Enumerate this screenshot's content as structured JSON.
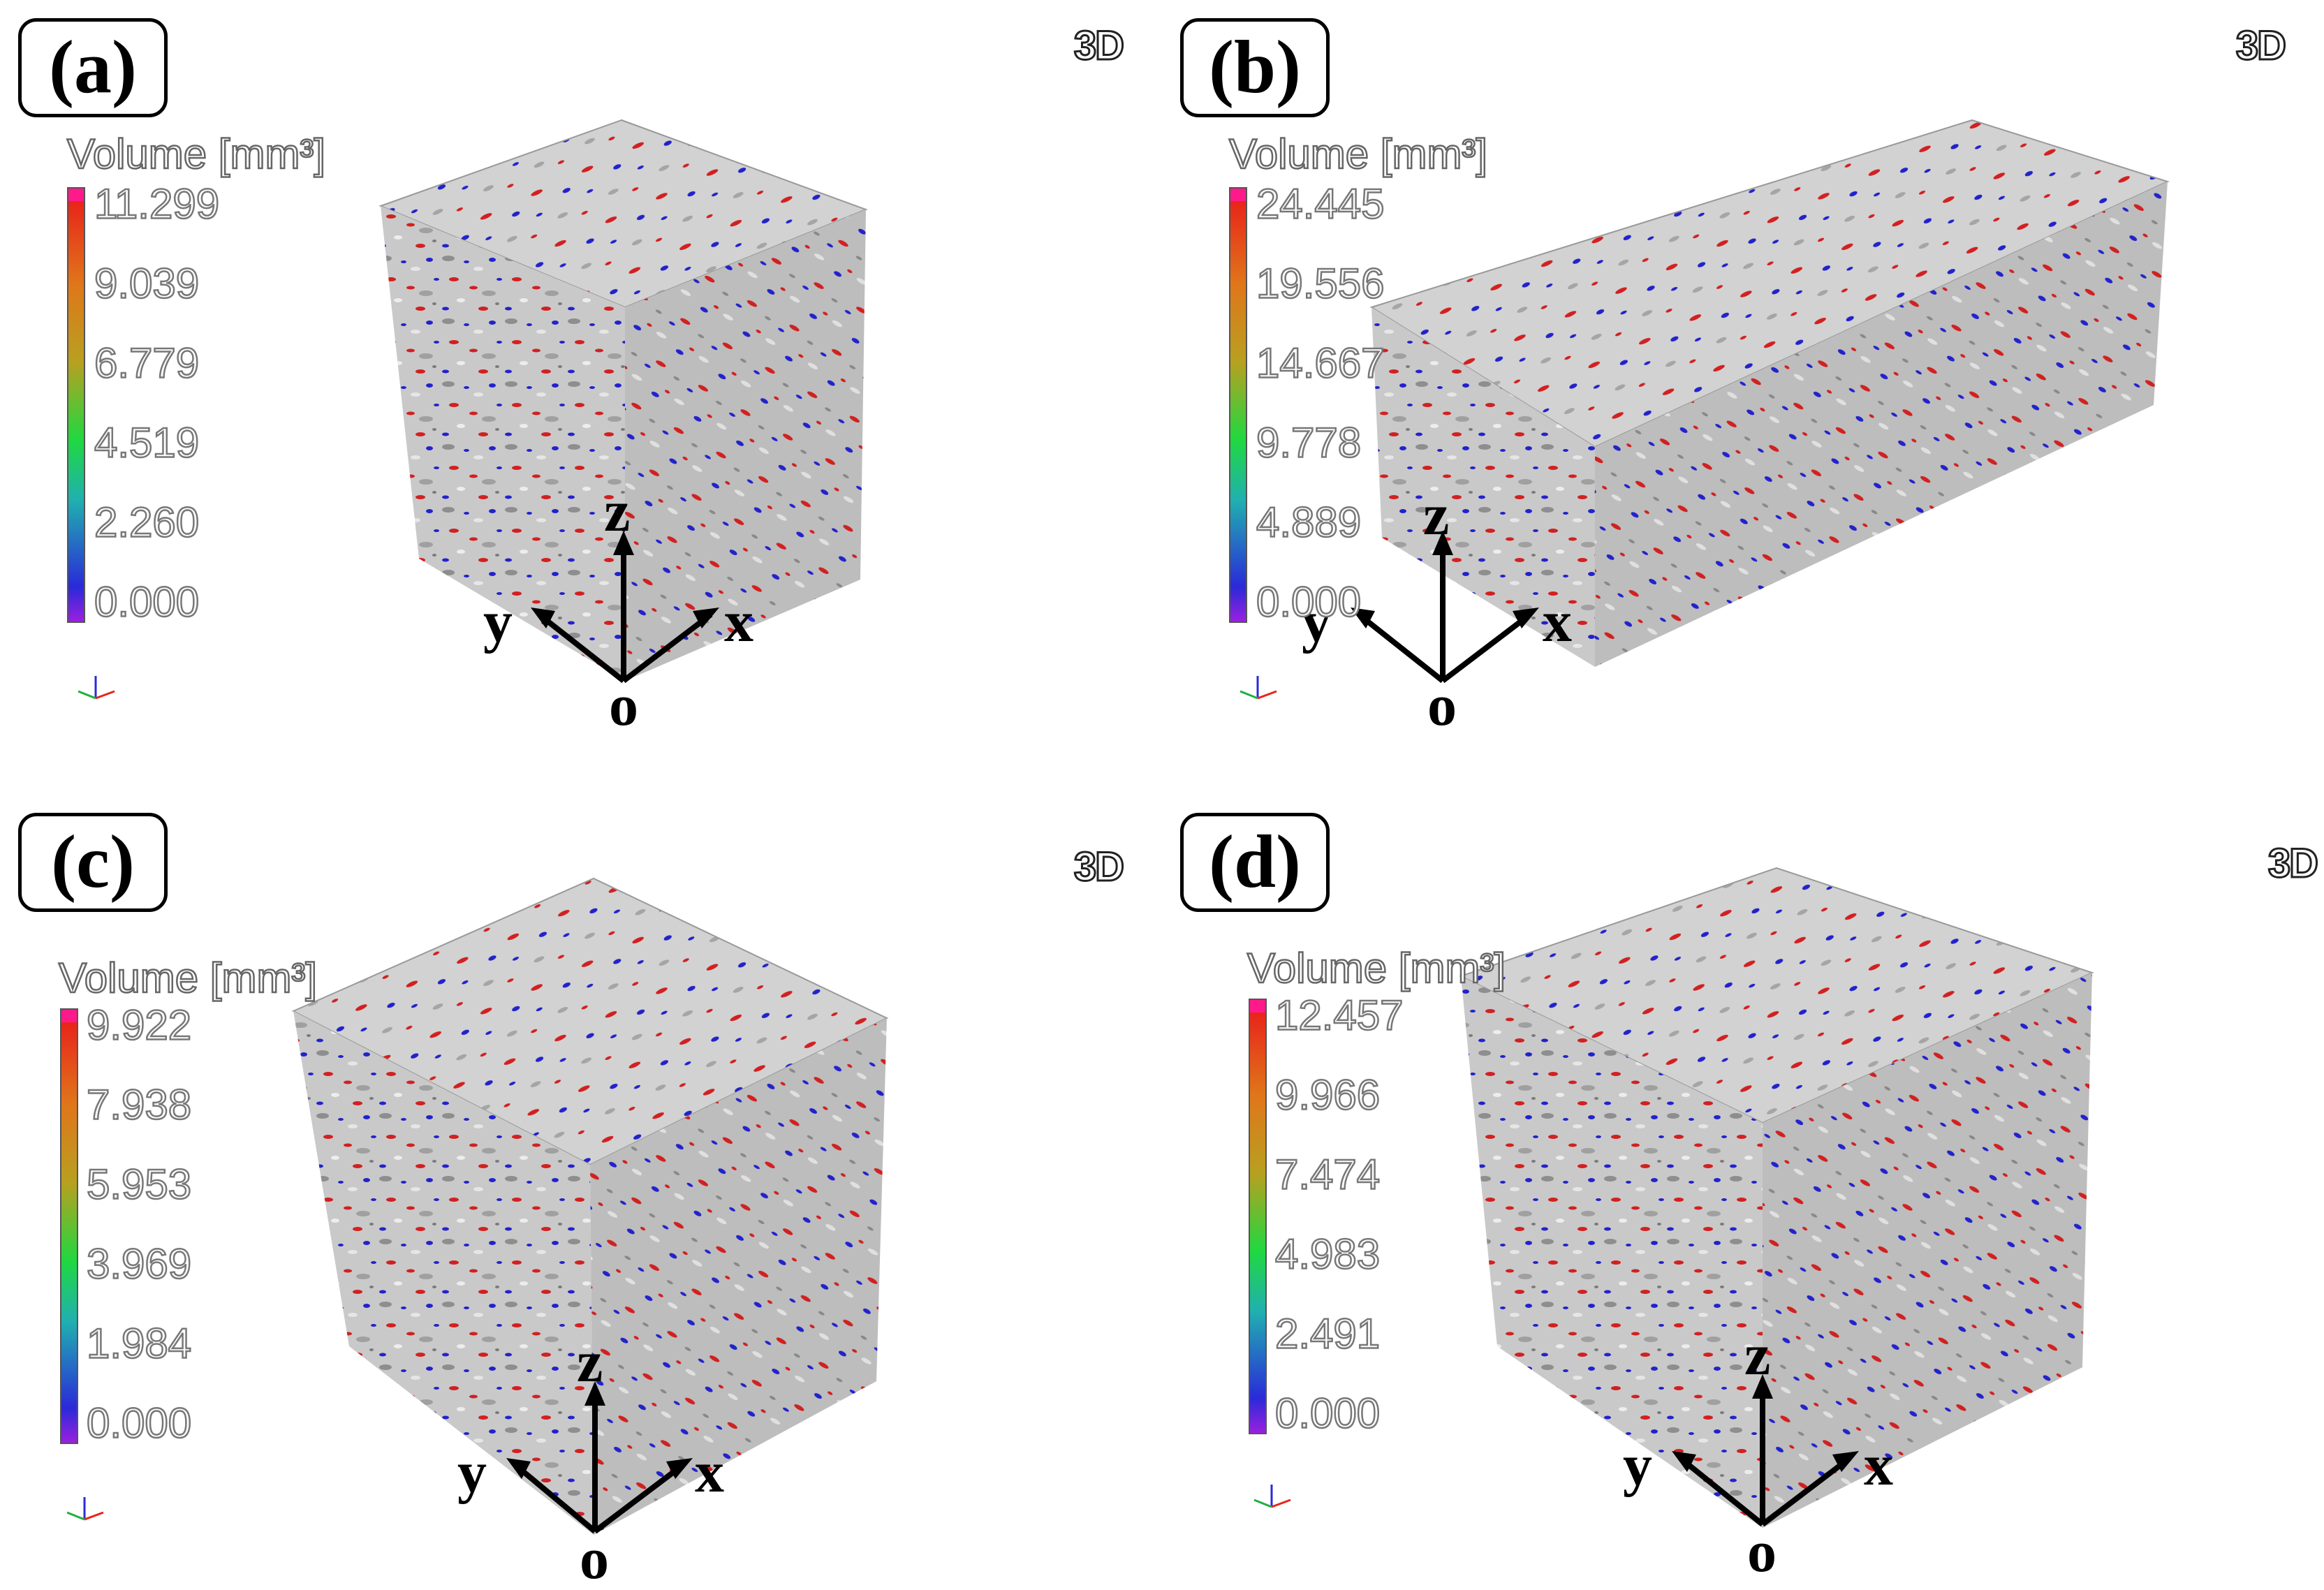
{
  "panels": [
    {
      "label": "(a)",
      "view_tag": "3D",
      "colorbar_title": "Volume [mm³]",
      "ticks": [
        "11.299",
        "9.039",
        "6.779",
        "4.519",
        "2.260",
        "0.000"
      ],
      "axes": {
        "z": "z",
        "y": "y",
        "x": "x",
        "origin": "o"
      }
    },
    {
      "label": "(b)",
      "view_tag": "3D",
      "colorbar_title": "Volume [mm³]",
      "ticks": [
        "24.445",
        "19.556",
        "14.667",
        "9.778",
        "4.889",
        "0.000"
      ],
      "axes": {
        "z": "z",
        "y": "y",
        "x": "x",
        "origin": "o"
      }
    },
    {
      "label": "(c)",
      "view_tag": "3D",
      "colorbar_title": "Volume [mm³]",
      "ticks": [
        "9.922",
        "7.938",
        "5.953",
        "3.969",
        "1.984",
        "0.000"
      ],
      "axes": {
        "z": "z",
        "y": "y",
        "x": "x",
        "origin": "o"
      }
    },
    {
      "label": "(d)",
      "view_tag": "3D",
      "colorbar_title": "Volume [mm³]",
      "ticks": [
        "12.457",
        "9.966",
        "7.474",
        "4.983",
        "2.491",
        "0.000"
      ],
      "axes": {
        "z": "z",
        "y": "y",
        "x": "x",
        "origin": "o"
      }
    }
  ],
  "colors": {
    "high": "#e8241a",
    "low": "#2a2ad8",
    "matrix": "#c8c8c8",
    "max_marker": "#ff1a8c",
    "min_marker": "#9a20e0"
  }
}
